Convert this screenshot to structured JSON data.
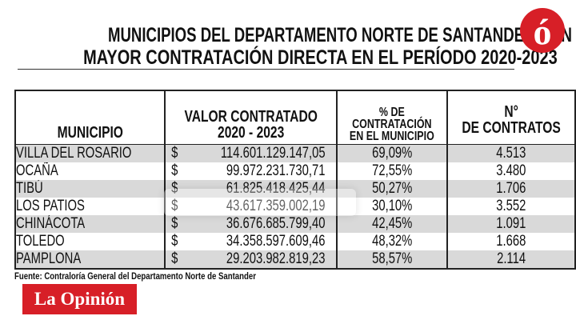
{
  "title": {
    "line1": "MUNICIPIOS DEL DEPARTAMENTO NORTE DE SANTANDER CON LA",
    "line2": "MAYOR CONTRATACIÓN DIRECTA EN EL PERÍODO 2020-2023"
  },
  "logo_mark": "ó",
  "table": {
    "headers": {
      "municipio": "MUNICIPIO",
      "valor_1": "VALOR CONTRATADO",
      "valor_2": "2020  - 2023",
      "pct_1": "% DE",
      "pct_2": "CONTRATACIÓN",
      "pct_3": "EN EL MUNICIPIO",
      "n_1": "N°",
      "n_2": "DE CONTRATOS"
    },
    "currency": "$",
    "rows": [
      {
        "municipio": "VILLA DEL ROSARIO",
        "valor": "114.601.129.147,05",
        "pct": "69,09%",
        "n": "4.513"
      },
      {
        "municipio": "OCAÑA",
        "valor": "99.972.231.730,71",
        "pct": "72,55%",
        "n": "3.480"
      },
      {
        "municipio": "TIBÚ",
        "valor": "61.825.418.425,44",
        "pct": "50,27%",
        "n": "1.706"
      },
      {
        "municipio": "LOS PATIOS",
        "valor": "43.617.359.002,19",
        "pct": "30,10%",
        "n": "3.552"
      },
      {
        "municipio": "CHINÁCOTA",
        "valor": "36.676.685.799,40",
        "pct": "42,45%",
        "n": "1.091"
      },
      {
        "municipio": "TOLEDO",
        "valor": "34.358.597.609,46",
        "pct": "48,32%",
        "n": "1.668"
      },
      {
        "municipio": "PAMPLONA",
        "valor": "29.203.982.819,23",
        "pct": "58,57%",
        "n": "2.114"
      }
    ]
  },
  "source": "Fuente: Contraloría  General del Departamento Norte de Santander",
  "brand": "La Opinión",
  "watermark": "La Opinión",
  "colors": {
    "brand_red": "#d71f27",
    "row_shade": "#d9d9d9"
  }
}
